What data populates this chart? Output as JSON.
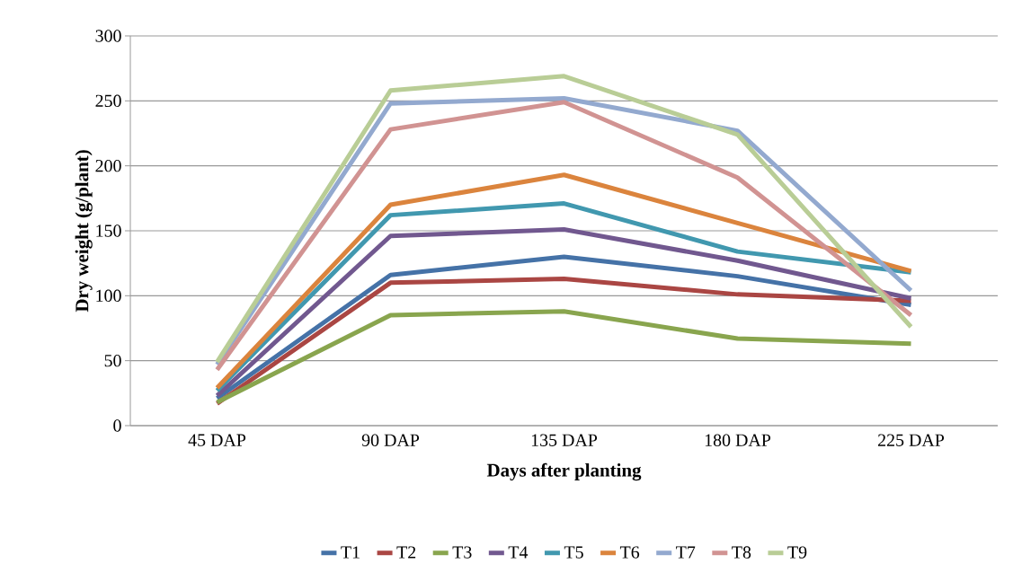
{
  "chart_data": {
    "type": "line",
    "xlabel": "Days after planting",
    "ylabel": "Dry weight (g/plant)",
    "categories": [
      "45 DAP",
      "90 DAP",
      "135 DAP",
      "180 DAP",
      "225 DAP"
    ],
    "ylim": [
      0,
      300
    ],
    "yticks": [
      0,
      50,
      100,
      150,
      200,
      250,
      300
    ],
    "grid": "y",
    "legend": "bottom",
    "marker": "none",
    "line_style": "solid",
    "series": [
      {
        "name": "T1",
        "color": "#4572a7",
        "values": [
          21,
          116,
          130,
          115,
          93
        ]
      },
      {
        "name": "T2",
        "color": "#aa4643",
        "values": [
          17,
          110,
          113,
          101,
          96
        ]
      },
      {
        "name": "T3",
        "color": "#89a54e",
        "values": [
          18,
          85,
          88,
          67,
          63
        ]
      },
      {
        "name": "T4",
        "color": "#71588f",
        "values": [
          23,
          146,
          151,
          127,
          98
        ]
      },
      {
        "name": "T5",
        "color": "#4198af",
        "values": [
          27,
          162,
          171,
          134,
          118
        ]
      },
      {
        "name": "T6",
        "color": "#db843d",
        "values": [
          29,
          170,
          193,
          156,
          119
        ]
      },
      {
        "name": "T7",
        "color": "#93a9cf",
        "values": [
          47,
          248,
          252,
          227,
          104
        ]
      },
      {
        "name": "T8",
        "color": "#d19392",
        "values": [
          43,
          228,
          249,
          191,
          85
        ]
      },
      {
        "name": "T9",
        "color": "#b9cd96",
        "values": [
          49,
          258,
          269,
          224,
          76
        ]
      }
    ]
  }
}
